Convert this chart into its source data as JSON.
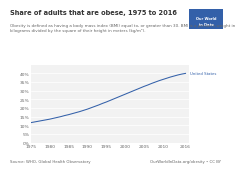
{
  "title": "Share of adults that are obese, 1975 to 2016",
  "subtitle": "Obesity is defined as having a body mass index (BMI) equal to, or greater than 30. BMI is a person's weight in\nkilograms divided by the square of their height in meters (kg/m²).",
  "source": "Source: WHO, Global Health Observatory",
  "credit": "OurWorldInData.org/obesity • CC BY",
  "logo_text": "Our World\nin Data",
  "series_label": "United States",
  "years": [
    1975,
    1976,
    1977,
    1978,
    1979,
    1980,
    1981,
    1982,
    1983,
    1984,
    1985,
    1986,
    1987,
    1988,
    1989,
    1990,
    1991,
    1992,
    1993,
    1994,
    1995,
    1996,
    1997,
    1998,
    1999,
    2000,
    2001,
    2002,
    2003,
    2004,
    2005,
    2006,
    2007,
    2008,
    2009,
    2010,
    2011,
    2012,
    2013,
    2014,
    2015,
    2016
  ],
  "values": [
    11.6,
    12.0,
    12.4,
    12.8,
    13.2,
    13.6,
    14.1,
    14.6,
    15.1,
    15.7,
    16.2,
    16.8,
    17.4,
    18.0,
    18.7,
    19.4,
    20.2,
    21.0,
    21.8,
    22.7,
    23.5,
    24.4,
    25.3,
    26.2,
    27.1,
    28.0,
    28.9,
    29.8,
    30.7,
    31.6,
    32.5,
    33.3,
    34.2,
    35.0,
    35.8,
    36.5,
    37.2,
    37.9,
    38.5,
    39.1,
    39.6,
    40.0
  ],
  "line_color": "#3360a9",
  "bg_color": "#ffffff",
  "plot_bg_color": "#f2f2f2",
  "grid_color": "#ffffff",
  "ylim": [
    0,
    45
  ],
  "yticks": [
    0,
    5,
    10,
    15,
    20,
    25,
    30,
    35,
    40
  ],
  "xticks": [
    1975,
    1980,
    1985,
    1990,
    1995,
    2000,
    2005,
    2010,
    2016
  ],
  "logo_bg": "#3360a9",
  "logo_fg": "#ffffff",
  "title_fontsize": 4.8,
  "subtitle_fontsize": 3.0,
  "tick_fontsize": 3.2,
  "source_fontsize": 2.8,
  "label_color": "#333333",
  "muted_color": "#666666"
}
